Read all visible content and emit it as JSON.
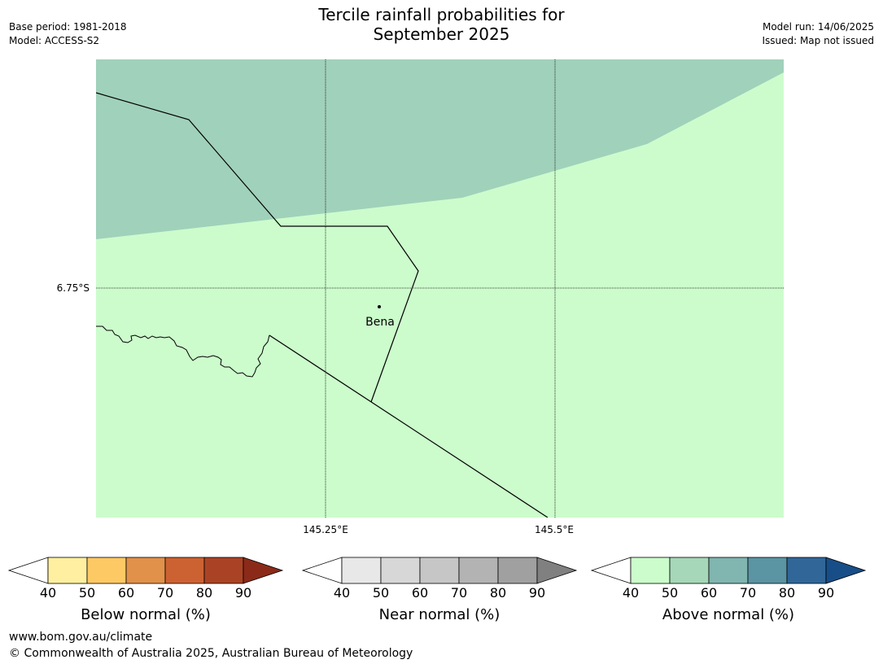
{
  "title": {
    "line1": "Tercile rainfall probabilities for",
    "line2": "September 2025"
  },
  "meta_left": {
    "base_period": "Base period: 1981-2018",
    "model": "Model: ACCESS-S2"
  },
  "meta_right": {
    "model_run": "Model run: 14/06/2025",
    "issued": "Issued: Map not issued"
  },
  "map": {
    "lat_label": "6.75°S",
    "lon_labels": [
      "145.25°E",
      "145.5°E"
    ],
    "place": "Bena",
    "colors": {
      "above_50_60": "#a0d1ba",
      "above_40_50": "#ccfccc",
      "border": "#000000",
      "grid": "#000000"
    }
  },
  "legends": [
    {
      "label": "Below normal (%)",
      "ticks": [
        "40",
        "50",
        "60",
        "70",
        "80",
        "90"
      ],
      "colors": [
        "#fef0a0",
        "#fdc965",
        "#e1914a",
        "#cc6232",
        "#aa4325",
        "#8b2a18"
      ]
    },
    {
      "label": "Near normal (%)",
      "ticks": [
        "40",
        "50",
        "60",
        "70",
        "80",
        "90"
      ],
      "colors": [
        "#e8e8e8",
        "#d7d7d7",
        "#c6c6c6",
        "#b3b3b3",
        "#a0a0a0",
        "#808080"
      ]
    },
    {
      "label": "Above normal (%)",
      "ticks": [
        "40",
        "50",
        "60",
        "70",
        "80",
        "90"
      ],
      "colors": [
        "#ccfccc",
        "#a6d7b8",
        "#80b5b0",
        "#5b94a2",
        "#306798",
        "#184e88"
      ]
    }
  ],
  "footer": {
    "website": "www.bom.gov.au/climate",
    "copyright": "© Commonwealth of Australia 2025, Australian Bureau of Meteorology"
  }
}
